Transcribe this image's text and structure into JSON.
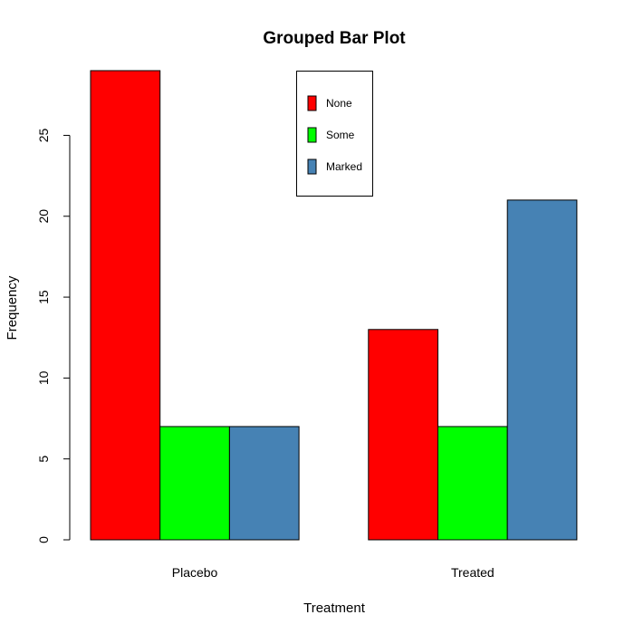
{
  "chart_data": {
    "type": "bar",
    "title": "Grouped Bar Plot",
    "xlabel": "Treatment",
    "ylabel": "Frequency",
    "categories": [
      "Placebo",
      "Treated"
    ],
    "series": [
      {
        "name": "None",
        "values": [
          29,
          13
        ],
        "color": "#ff0000"
      },
      {
        "name": "Some",
        "values": [
          7,
          7
        ],
        "color": "#00ff00"
      },
      {
        "name": "Marked",
        "values": [
          7,
          21
        ],
        "color": "#4682b4"
      }
    ],
    "yticks": [
      0,
      5,
      10,
      15,
      20,
      25
    ],
    "ylim": [
      0,
      29
    ],
    "legend_position": "top-center",
    "grid": false
  }
}
